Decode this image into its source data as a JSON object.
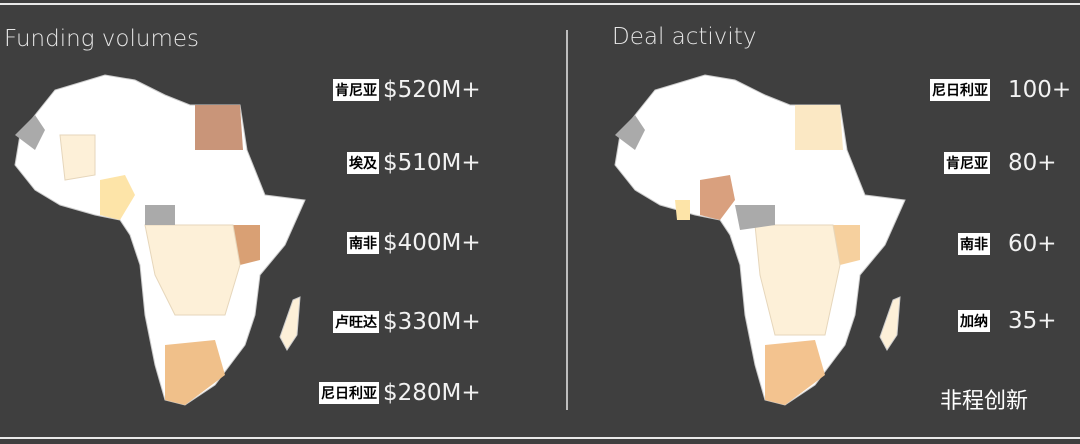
{
  "panels": [
    {
      "title": "Funding volumes",
      "items": [
        {
          "label": "肯尼亚",
          "value": "$520M+"
        },
        {
          "label": "埃及",
          "value": "$510M+"
        },
        {
          "label": "南非",
          "value": "$400M+"
        },
        {
          "label": "卢旺达",
          "value": "$330M+"
        },
        {
          "label": "尼日利亚",
          "value": "$280M+"
        }
      ]
    },
    {
      "title": "Deal activity",
      "items": [
        {
          "label": "尼日利亚",
          "value": "100+"
        },
        {
          "label": "肯尼亚",
          "value": "80+"
        },
        {
          "label": "南非",
          "value": "60+"
        },
        {
          "label": "加纳",
          "value": "35+"
        }
      ]
    }
  ],
  "watermark": "非程创新"
}
